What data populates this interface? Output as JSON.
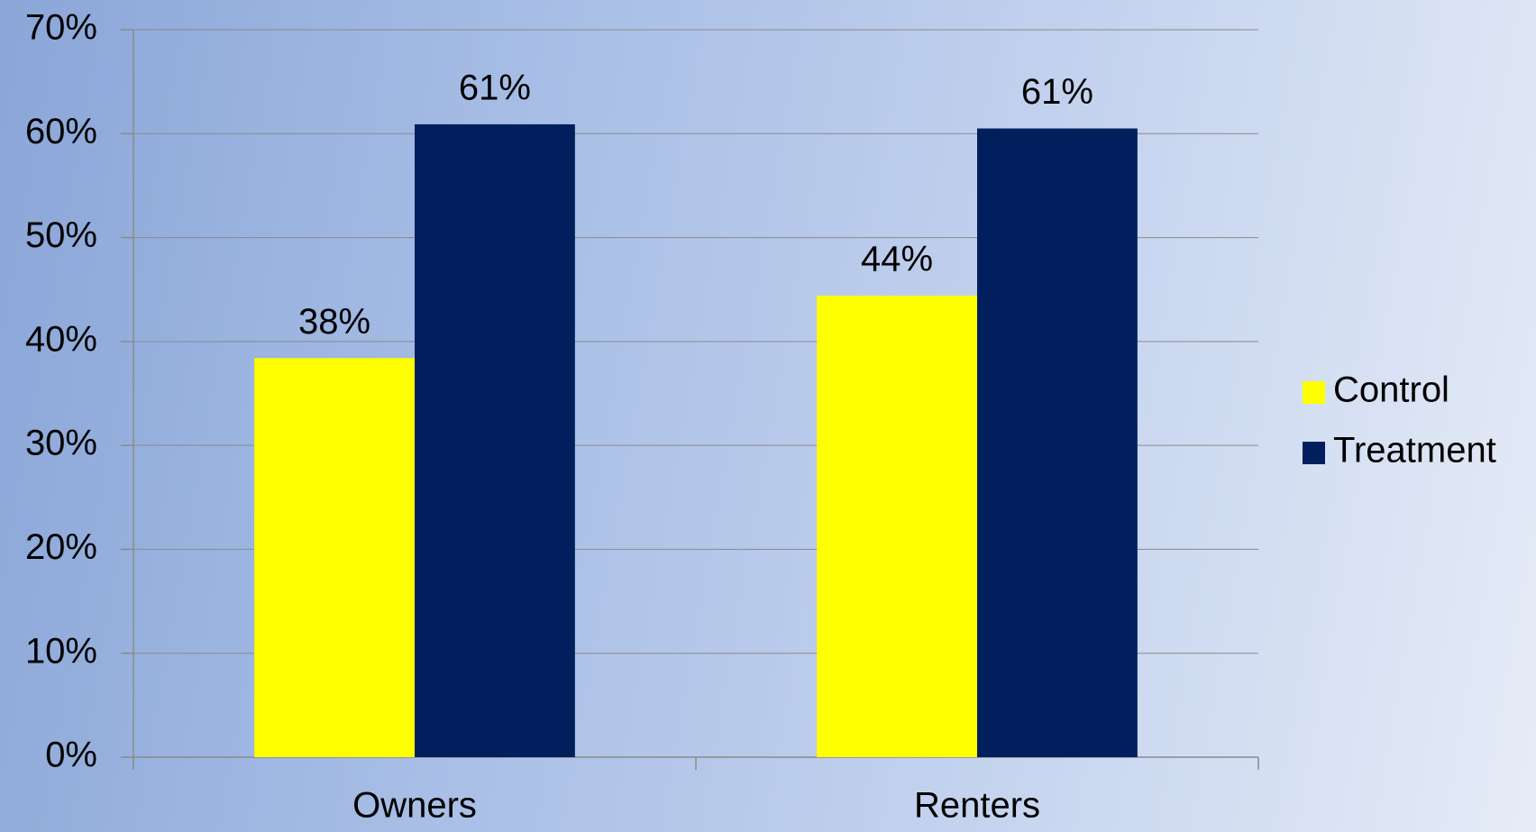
{
  "chart_data": {
    "type": "bar",
    "categories": [
      "Owners",
      "Renters"
    ],
    "series": [
      {
        "name": "Control",
        "color": "#ffff00",
        "values": [
          38.4,
          44.4
        ],
        "value_labels": [
          "38%",
          "44%"
        ]
      },
      {
        "name": "Treatment",
        "color": "#001f5c",
        "values": [
          60.9,
          60.5
        ],
        "value_labels": [
          "61%",
          "61%"
        ]
      }
    ],
    "ylim": [
      0,
      70
    ],
    "yticks": [
      {
        "value": 0,
        "label": "0%"
      },
      {
        "value": 10,
        "label": "10%"
      },
      {
        "value": 20,
        "label": "20%"
      },
      {
        "value": 30,
        "label": "30%"
      },
      {
        "value": 40,
        "label": "40%"
      },
      {
        "value": 50,
        "label": "50%"
      },
      {
        "value": 60,
        "label": "60%"
      },
      {
        "value": 70,
        "label": "70%"
      }
    ],
    "grid": true,
    "legend": "right"
  }
}
